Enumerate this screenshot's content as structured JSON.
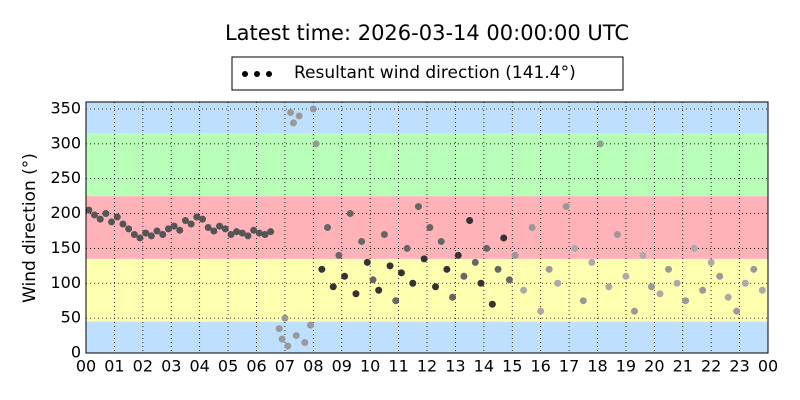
{
  "chart_data": {
    "type": "scatter",
    "title": "Latest time: 2026-03-14 00:00:00 UTC",
    "ylabel": "Wind direction (°)",
    "xlim": [
      0,
      24
    ],
    "ylim": [
      0,
      360
    ],
    "xticks": [
      {
        "value": 0,
        "label": "00"
      },
      {
        "value": 1,
        "label": "01"
      },
      {
        "value": 2,
        "label": "02"
      },
      {
        "value": 3,
        "label": "03"
      },
      {
        "value": 4,
        "label": "04"
      },
      {
        "value": 5,
        "label": "05"
      },
      {
        "value": 6,
        "label": "06"
      },
      {
        "value": 7,
        "label": "07"
      },
      {
        "value": 8,
        "label": "08"
      },
      {
        "value": 9,
        "label": "09"
      },
      {
        "value": 10,
        "label": "10"
      },
      {
        "value": 11,
        "label": "11"
      },
      {
        "value": 12,
        "label": "12"
      },
      {
        "value": 13,
        "label": "13"
      },
      {
        "value": 14,
        "label": "14"
      },
      {
        "value": 15,
        "label": "15"
      },
      {
        "value": 16,
        "label": "16"
      },
      {
        "value": 17,
        "label": "17"
      },
      {
        "value": 18,
        "label": "18"
      },
      {
        "value": 19,
        "label": "19"
      },
      {
        "value": 20,
        "label": "20"
      },
      {
        "value": 21,
        "label": "21"
      },
      {
        "value": 22,
        "label": "22"
      },
      {
        "value": 23,
        "label": "23"
      },
      {
        "value": 24,
        "label": "00"
      }
    ],
    "yticks": [
      0,
      50,
      100,
      150,
      200,
      250,
      300,
      350
    ],
    "grid": true,
    "legend": "top",
    "bands": [
      {
        "from": 0,
        "to": 45,
        "color": "#bfdfff"
      },
      {
        "from": 45,
        "to": 135,
        "color": "#ffffb0"
      },
      {
        "from": 135,
        "to": 225,
        "color": "#ffb3b8"
      },
      {
        "from": 225,
        "to": 315,
        "color": "#b8ffb8"
      },
      {
        "from": 315,
        "to": 360,
        "color": "#bfdfff"
      }
    ],
    "series": [
      {
        "name": "Resultant wind direction (141.4°)",
        "color": "#000000",
        "x": [
          0.1,
          0.3,
          0.5,
          0.7,
          0.9,
          1.1,
          1.3,
          1.5,
          1.7,
          1.9,
          2.1,
          2.3,
          2.5,
          2.7,
          2.9,
          3.1,
          3.3,
          3.5,
          3.7,
          3.9,
          4.1,
          4.3,
          4.5,
          4.7,
          4.9,
          5.1,
          5.3,
          5.5,
          5.7,
          5.9,
          6.1,
          6.3,
          6.5,
          6.8,
          6.9,
          7.0,
          7.1,
          7.2,
          7.3,
          7.4,
          7.5,
          7.7,
          7.9,
          8.0,
          8.1,
          8.3,
          8.5,
          8.7,
          8.9,
          9.1,
          9.3,
          9.5,
          9.7,
          9.9,
          10.1,
          10.3,
          10.5,
          10.7,
          10.9,
          11.1,
          11.3,
          11.5,
          11.7,
          11.9,
          12.1,
          12.3,
          12.5,
          12.7,
          12.9,
          13.1,
          13.3,
          13.5,
          13.7,
          13.9,
          14.1,
          14.3,
          14.5,
          14.7,
          14.9,
          15.1,
          15.4,
          15.7,
          16.0,
          16.3,
          16.6,
          16.9,
          17.2,
          17.5,
          17.8,
          18.1,
          18.4,
          18.7,
          19.0,
          19.3,
          19.6,
          19.9,
          20.2,
          20.5,
          20.8,
          21.1,
          21.4,
          21.7,
          22.0,
          22.3,
          22.6,
          22.9,
          23.2,
          23.5,
          23.8
        ],
        "values": [
          205,
          198,
          192,
          200,
          188,
          195,
          185,
          178,
          170,
          165,
          172,
          168,
          175,
          170,
          178,
          182,
          176,
          190,
          185,
          195,
          192,
          180,
          175,
          182,
          178,
          170,
          174,
          172,
          168,
          176,
          172,
          170,
          174,
          35,
          20,
          50,
          10,
          345,
          330,
          25,
          340,
          15,
          40,
          350,
          300,
          120,
          180,
          95,
          140,
          110,
          200,
          85,
          160,
          130,
          105,
          90,
          170,
          125,
          75,
          115,
          150,
          100,
          210,
          135,
          180,
          95,
          160,
          120,
          80,
          140,
          110,
          190,
          130,
          100,
          150,
          70,
          120,
          165,
          105,
          140,
          90,
          180,
          60,
          120,
          100,
          210,
          150,
          75,
          130,
          300,
          95,
          170,
          110,
          60,
          140,
          95,
          85,
          120,
          100,
          75,
          150,
          90,
          130,
          110,
          80,
          60,
          100,
          120,
          90
        ],
        "colors": [
          "#555",
          "#555",
          "#555",
          "#555",
          "#555",
          "#555",
          "#555",
          "#555",
          "#555",
          "#555",
          "#555",
          "#555",
          "#555",
          "#555",
          "#555",
          "#555",
          "#555",
          "#555",
          "#555",
          "#555",
          "#555",
          "#555",
          "#555",
          "#555",
          "#555",
          "#555",
          "#555",
          "#555",
          "#555",
          "#555",
          "#555",
          "#555",
          "#555",
          "#999",
          "#999",
          "#999",
          "#999",
          "#999",
          "#999",
          "#999",
          "#999",
          "#999",
          "#999",
          "#999",
          "#999",
          "#333",
          "#666",
          "#333",
          "#666",
          "#333",
          "#666",
          "#333",
          "#666",
          "#333",
          "#666",
          "#333",
          "#666",
          "#333",
          "#666",
          "#333",
          "#666",
          "#333",
          "#666",
          "#333",
          "#666",
          "#333",
          "#666",
          "#333",
          "#666",
          "#333",
          "#666",
          "#333",
          "#666",
          "#333",
          "#666",
          "#333",
          "#666",
          "#333",
          "#666",
          "#999",
          "#aaa",
          "#999",
          "#aaa",
          "#999",
          "#aaa",
          "#999",
          "#aaa",
          "#999",
          "#aaa",
          "#999",
          "#aaa",
          "#999",
          "#aaa",
          "#999",
          "#aaa",
          "#999",
          "#aaa",
          "#999",
          "#aaa",
          "#999",
          "#aaa",
          "#999",
          "#aaa",
          "#999",
          "#aaa",
          "#999",
          "#aaa",
          "#999",
          "#aaa"
        ]
      }
    ]
  }
}
